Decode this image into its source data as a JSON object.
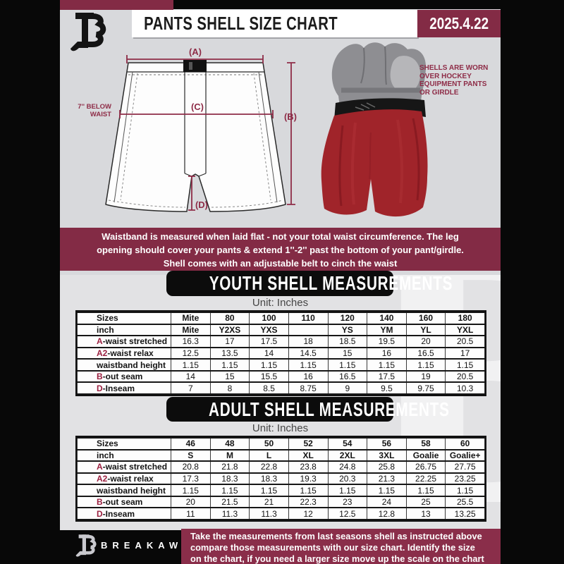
{
  "header": {
    "title": "PANTS SHELL SIZE CHART",
    "date": "2025.4.22"
  },
  "diagram": {
    "label_a": "(A)",
    "label_b": "(B)",
    "label_c": "(C)",
    "label_d": "(D)",
    "below_waist_lines": [
      "7'' BELOW",
      "WAIST"
    ]
  },
  "shell_note_lines": [
    "SHELLS ARE WORN",
    "OVER HOCKEY",
    "EQUIPMENT PANTS",
    "OR GIRDLE"
  ],
  "info_banner_lines": [
    "Waistband is measured when laid flat - not your total waist circumference. The leg",
    "opening should cover your pants & extend 1''-2'' past the bottom of your pant/girdle.",
    "Shell comes with an adjustable belt to cinch the waist"
  ],
  "youth": {
    "heading": "YOUTH SHELL MEASUREMENTS",
    "unit": "Unit: Inches",
    "table": {
      "rows": [
        {
          "bold": true,
          "accent": "",
          "label": "Sizes",
          "values": [
            "Mite",
            "80",
            "100",
            "110",
            "120",
            "140",
            "160",
            "180"
          ]
        },
        {
          "bold": true,
          "accent": "",
          "label": "inch",
          "values": [
            "Mite",
            "Y2XS",
            "YXS",
            "",
            "YS",
            "YM",
            "YL",
            "YXL"
          ]
        },
        {
          "bold": false,
          "accent": "A",
          "label": "-waist stretched",
          "values": [
            "16.3",
            "17",
            "17.5",
            "18",
            "18.5",
            "19.5",
            "20",
            "20.5"
          ]
        },
        {
          "bold": false,
          "accent": "A2",
          "label": "-waist relax",
          "values": [
            "12.5",
            "13.5",
            "14",
            "14.5",
            "15",
            "16",
            "16.5",
            "17"
          ]
        },
        {
          "bold": false,
          "accent": "",
          "label": "waistband height",
          "values": [
            "1.15",
            "1.15",
            "1.15",
            "1.15",
            "1.15",
            "1.15",
            "1.15",
            "1.15"
          ]
        },
        {
          "bold": false,
          "accent": "B",
          "label": "-out seam",
          "values": [
            "14",
            "15",
            "15.5",
            "16",
            "16.5",
            "17.5",
            "19",
            "20.5"
          ]
        },
        {
          "bold": false,
          "accent": "D",
          "label": "-Inseam",
          "values": [
            "7",
            "8",
            "8.5",
            "8.75",
            "9",
            "9.5",
            "9.75",
            "10.3"
          ]
        }
      ]
    }
  },
  "adult": {
    "heading": "ADULT SHELL MEASUREMENTS",
    "unit": "Unit: Inches",
    "table": {
      "rows": [
        {
          "bold": true,
          "accent": "",
          "label": "Sizes",
          "values": [
            "46",
            "48",
            "50",
            "52",
            "54",
            "56",
            "58",
            "60"
          ]
        },
        {
          "bold": true,
          "accent": "",
          "label": "inch",
          "values": [
            "S",
            "M",
            "L",
            "XL",
            "2XL",
            "3XL",
            "Goalie",
            "Goalie+"
          ]
        },
        {
          "bold": false,
          "accent": "A",
          "label": "-waist stretched",
          "values": [
            "20.8",
            "21.8",
            "22.8",
            "23.8",
            "24.8",
            "25.8",
            "26.75",
            "27.75"
          ]
        },
        {
          "bold": false,
          "accent": "A2",
          "label": "-waist relax",
          "values": [
            "17.3",
            "18.3",
            "18.3",
            "19.3",
            "20.3",
            "21.3",
            "22.25",
            "23.25"
          ]
        },
        {
          "bold": false,
          "accent": "",
          "label": "waistband height",
          "values": [
            "1.15",
            "1.15",
            "1.15",
            "1.15",
            "1.15",
            "1.15",
            "1.15",
            "1.15"
          ]
        },
        {
          "bold": false,
          "accent": "B",
          "label": "-out seam",
          "values": [
            "20",
            "21.5",
            "21",
            "22.3",
            "23",
            "24",
            "25",
            "25.5"
          ]
        },
        {
          "bold": false,
          "accent": "D",
          "label": "-Inseam",
          "values": [
            "11",
            "11.3",
            "11.3",
            "12",
            "12.5",
            "12.8",
            "13",
            "13.25"
          ]
        }
      ]
    }
  },
  "footer": {
    "brand": "BREAKAWAY",
    "lines": [
      "Take the measurements from last seasons shell as instructed above",
      "compare those measurements  with our size chart. Identify the size",
      "on the chart, if you need a larger size move up the scale on the chart"
    ]
  },
  "watermark": {
    "letter": "B"
  },
  "colors": {
    "maroon": "#832b45",
    "footer_maroon": "#8a2e4a",
    "diagram_line": "#8e2c47",
    "accent_letter": "#9b2040",
    "heading_bg": "#0c0c0c",
    "shell_red": "#a0242a",
    "girdle_gray": "#8e8e92",
    "bg_top": "#d8d9dc",
    "bg_bottom": "#e2e2e4"
  }
}
